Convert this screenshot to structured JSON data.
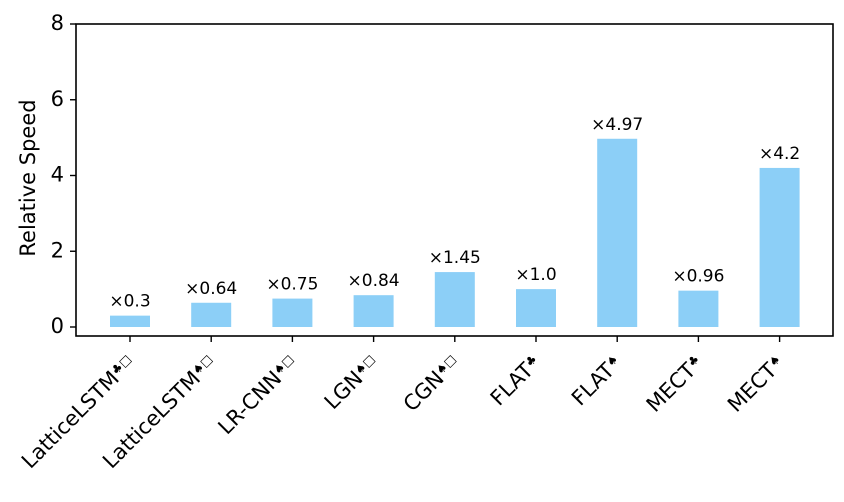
{
  "chart_data": {
    "type": "bar",
    "ylabel": "Relative Speed",
    "xlabel": "",
    "ylim": [
      0,
      8
    ],
    "yticks": [
      0,
      2,
      4,
      6,
      8
    ],
    "grid": false,
    "bar_color": "#8ccff7",
    "categories": [
      {
        "name": "LatticeLSTM",
        "marks": "♣□"
      },
      {
        "name": "LatticeLSTM",
        "marks": "♠□"
      },
      {
        "name": "LR-CNN",
        "marks": "♠□"
      },
      {
        "name": "LGN",
        "marks": "♠□"
      },
      {
        "name": "CGN",
        "marks": "♠□"
      },
      {
        "name": "FLAT",
        "marks": "♣"
      },
      {
        "name": "FLAT",
        "marks": "♠"
      },
      {
        "name": "MECT",
        "marks": "♣"
      },
      {
        "name": "MECT",
        "marks": "♠"
      }
    ],
    "values": [
      0.3,
      0.64,
      0.75,
      0.84,
      1.45,
      1.0,
      4.97,
      0.96,
      4.2
    ],
    "data_labels": [
      "×0.3",
      "×0.64",
      "×0.75",
      "×0.84",
      "×1.45",
      "×1.0",
      "×4.97",
      "×0.96",
      "×4.2"
    ]
  }
}
